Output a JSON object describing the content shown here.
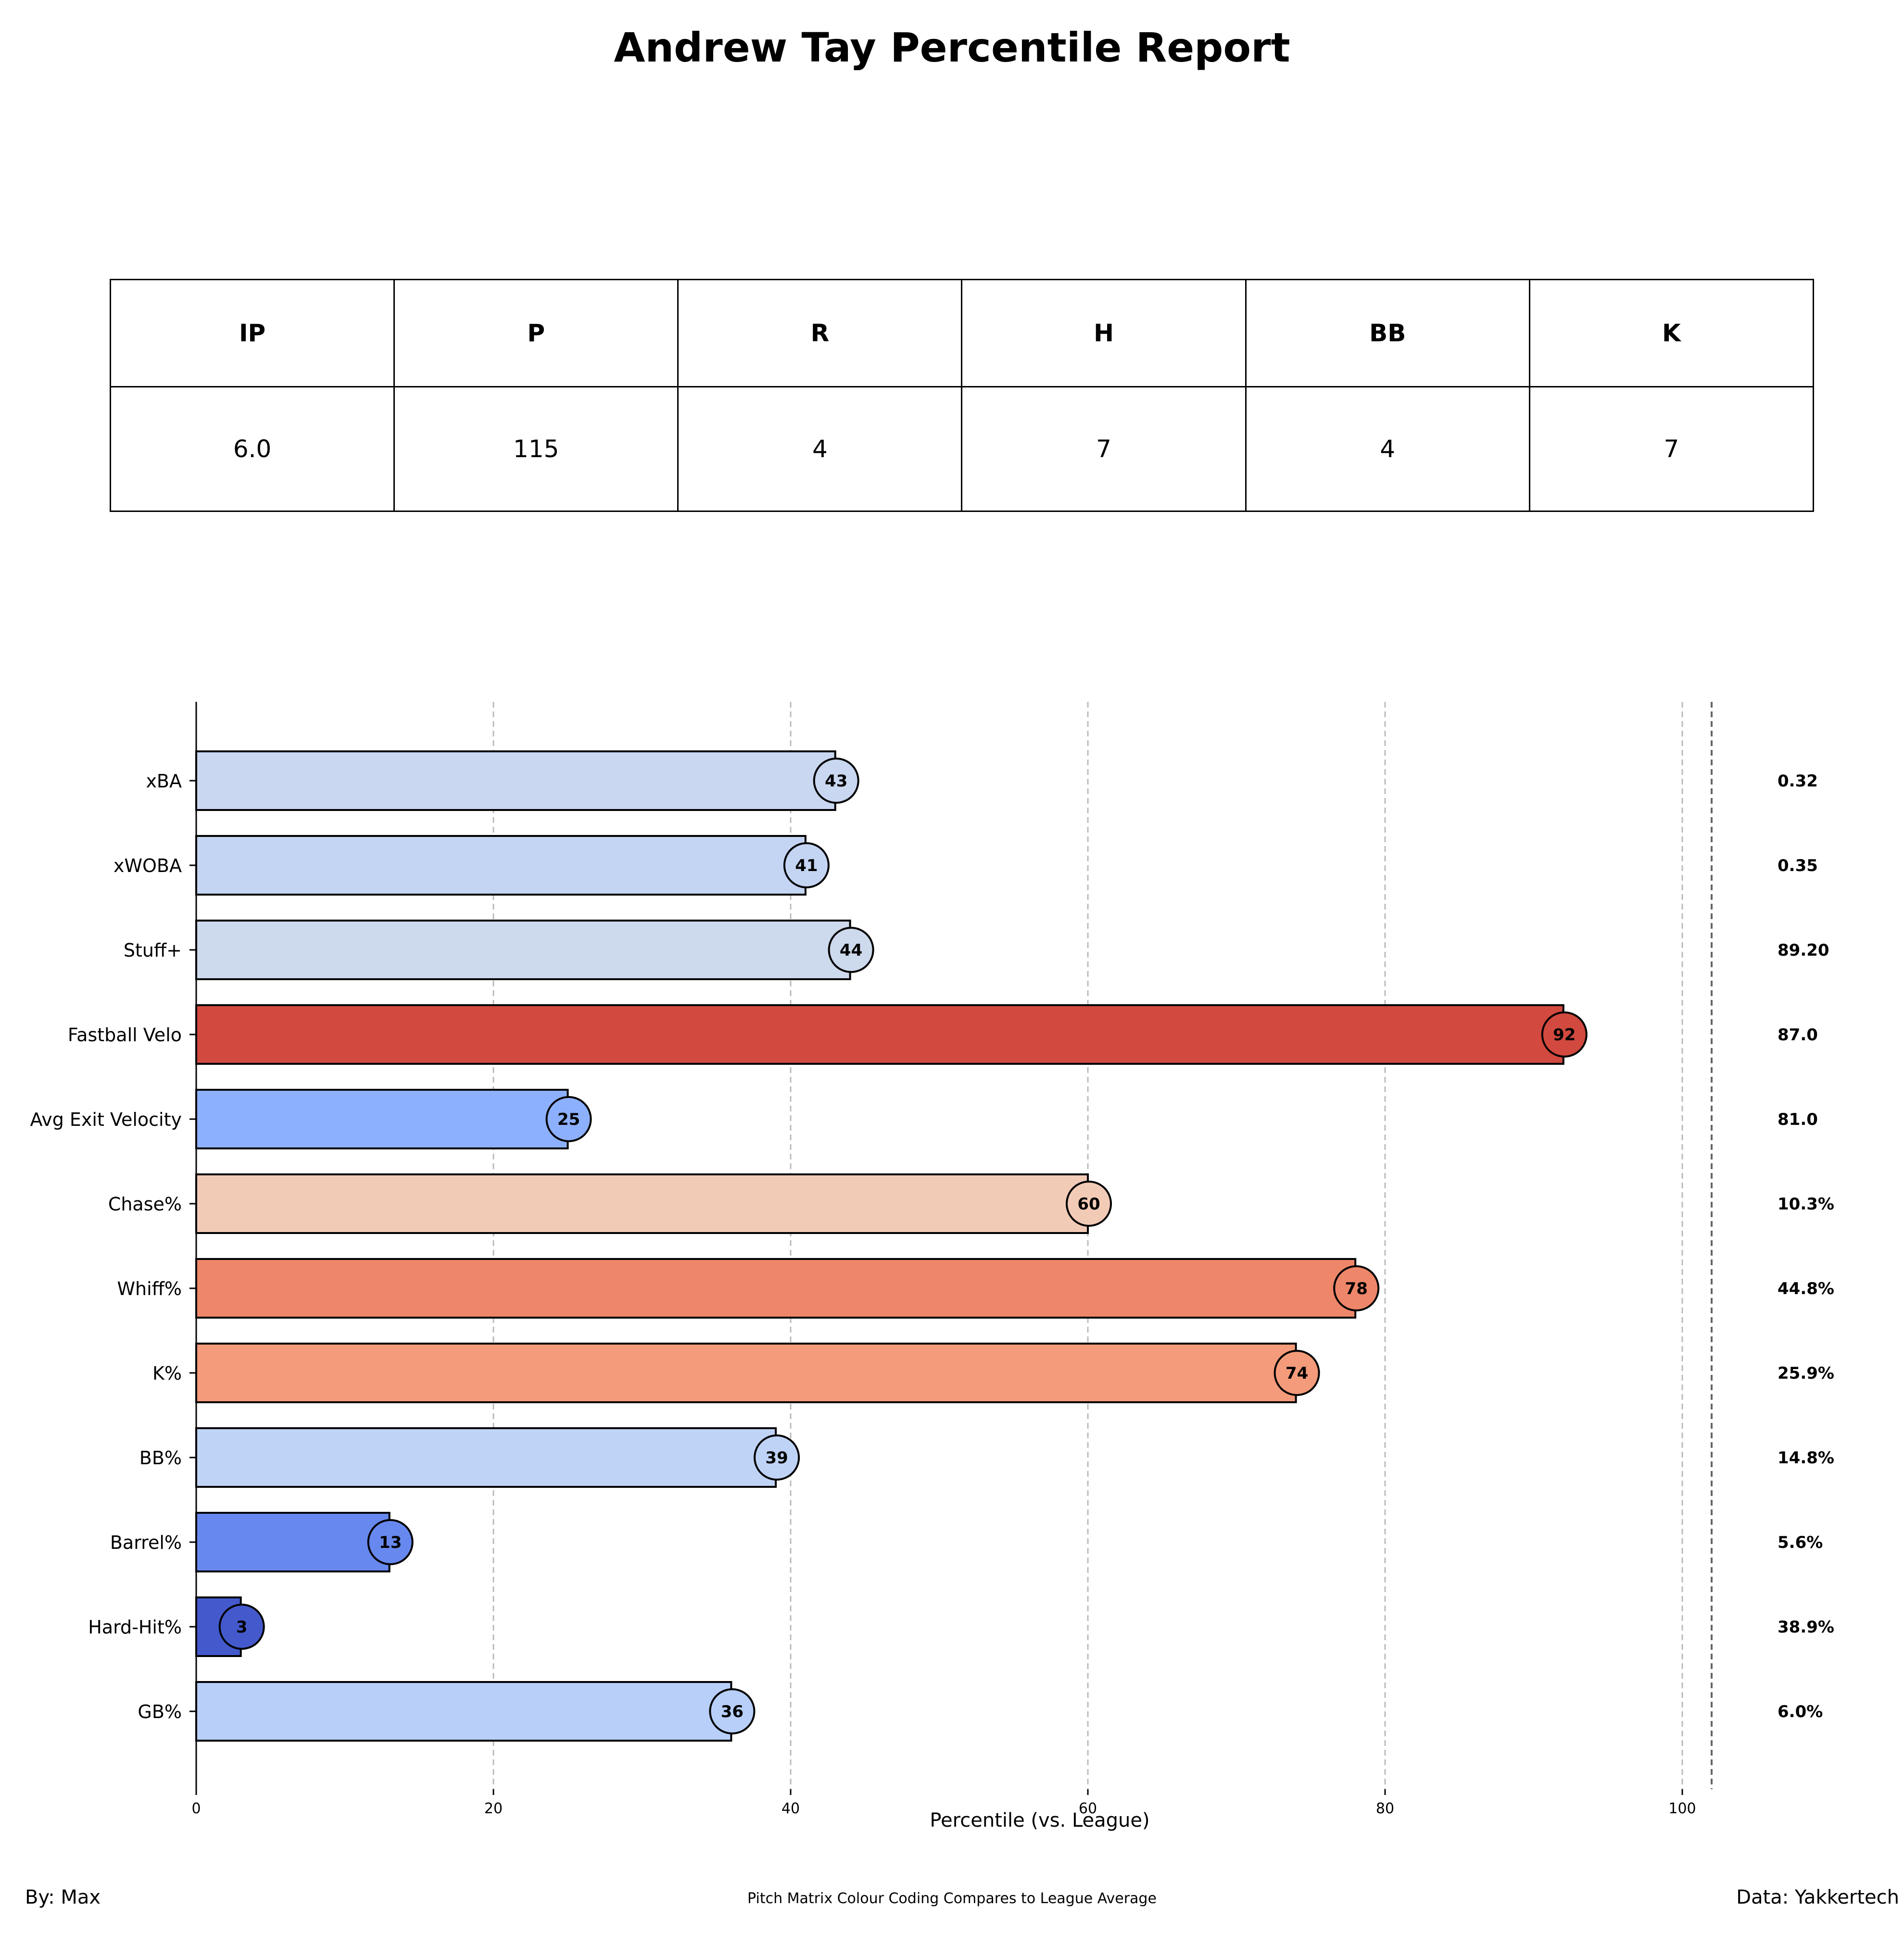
{
  "title": "Andrew Tay Percentile Report",
  "stats_table": {
    "headers": [
      "IP",
      "P",
      "R",
      "H",
      "BB",
      "K"
    ],
    "values": [
      "6.0",
      "115",
      "4",
      "7",
      "4",
      "7"
    ]
  },
  "chart_data": {
    "type": "bar",
    "orientation": "horizontal",
    "categories": [
      "xBA",
      "xWOBA",
      "Stuff+",
      "Fastball Velo",
      "Avg Exit Velocity",
      "Chase%",
      "Whiff%",
      "K%",
      "BB%",
      "Barrel%",
      "Hard-Hit%",
      "GB%"
    ],
    "values": [
      43,
      41,
      44,
      92,
      25,
      60,
      78,
      74,
      39,
      13,
      3,
      36
    ],
    "raw_values": [
      "0.32",
      "0.35",
      "89.20",
      "87.0",
      "81.0",
      "10.3%",
      "44.8%",
      "25.9%",
      "14.8%",
      "5.6%",
      "38.9%",
      "6.0%"
    ],
    "colors": [
      "#c9d7f0",
      "#c4d5f3",
      "#cdd9ec",
      "#d1493f",
      "#8db0fe",
      "#f2cbb7",
      "#ee8669",
      "#f39b7a",
      "#bfd3f6",
      "#6788ee",
      "#445acc",
      "#b7cff9"
    ],
    "xlabel": "Percentile (vs. League)",
    "ylabel": "",
    "xlim": [
      0,
      110
    ],
    "xticks": [
      0,
      20,
      40,
      60,
      80,
      100
    ],
    "grid": "vertical-dashed"
  },
  "footer": {
    "left": "By: Max",
    "center": "Pitch Matrix Colour Coding Compares to League Average",
    "right": "Data: Yakkertech"
  }
}
